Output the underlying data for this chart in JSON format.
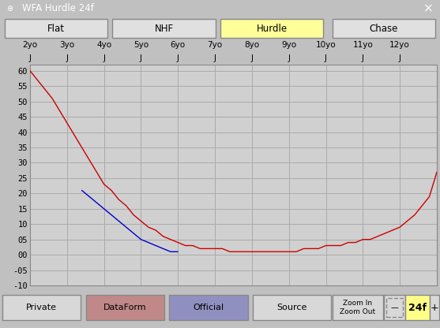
{
  "title": "WFA Hurdle 24f",
  "tabs": [
    "Flat",
    "NHF",
    "Hurdle",
    "Chase"
  ],
  "active_tab": "Hurdle",
  "age_labels": [
    "2yo",
    "3yo",
    "4yo",
    "5yo",
    "6yo",
    "7yo",
    "8yo",
    "9yo",
    "10yo",
    "11yo",
    "12yo"
  ],
  "ymin": -10,
  "ymax": 62,
  "xmin": 0,
  "xmax": 110,
  "bottom_buttons": [
    "Private",
    "DataForm",
    "Official",
    "Source"
  ],
  "button_colors": [
    "#d8d8d8",
    "#c08888",
    "#9090c0",
    "#d8d8d8"
  ],
  "bg_color": "#c0c0c0",
  "plot_bg": "#d0d0d0",
  "grid_color": "#aaaaaa",
  "title_bar_color": "#7a7a7a",
  "active_tab_color": "#ffff99",
  "tab_color": "#e0e0e0",
  "red_line_x": [
    0,
    2,
    4,
    6,
    8,
    10,
    12,
    14,
    16,
    18,
    20,
    22,
    24,
    26,
    28,
    30,
    32,
    34,
    36,
    38,
    40,
    42,
    44,
    46,
    48,
    50,
    52,
    54,
    56,
    58,
    60,
    62,
    64,
    66,
    68,
    70,
    72,
    74,
    76,
    78,
    80,
    82,
    84,
    86,
    88,
    90,
    92,
    94,
    96,
    98,
    100,
    102,
    104,
    106,
    108,
    110
  ],
  "red_line_y": [
    60,
    57,
    54,
    51,
    47,
    43,
    39,
    35,
    31,
    27,
    23,
    21,
    18,
    16,
    13,
    11,
    9,
    8,
    6,
    5,
    4,
    3,
    3,
    2,
    2,
    2,
    2,
    1,
    1,
    1,
    1,
    1,
    1,
    1,
    1,
    1,
    1,
    2,
    2,
    2,
    3,
    3,
    3,
    4,
    4,
    5,
    5,
    6,
    7,
    8,
    9,
    11,
    13,
    16,
    19,
    27
  ],
  "blue_line_x": [
    14,
    16,
    18,
    20,
    22,
    24,
    26,
    28,
    30,
    32,
    34,
    36,
    38,
    40
  ],
  "blue_line_y": [
    21,
    19,
    17,
    15,
    13,
    11,
    9,
    7,
    5,
    4,
    3,
    2,
    1,
    1
  ],
  "zoom_label": "24f",
  "ytick_vals": [
    60,
    55,
    50,
    45,
    40,
    35,
    30,
    25,
    20,
    15,
    10,
    5,
    0,
    -5,
    -10
  ],
  "ytick_labels": [
    "60",
    "55",
    "50",
    "45",
    "40",
    "35",
    "30",
    "25",
    "20",
    "15",
    "10",
    "05",
    "00",
    "-05",
    "-10"
  ]
}
